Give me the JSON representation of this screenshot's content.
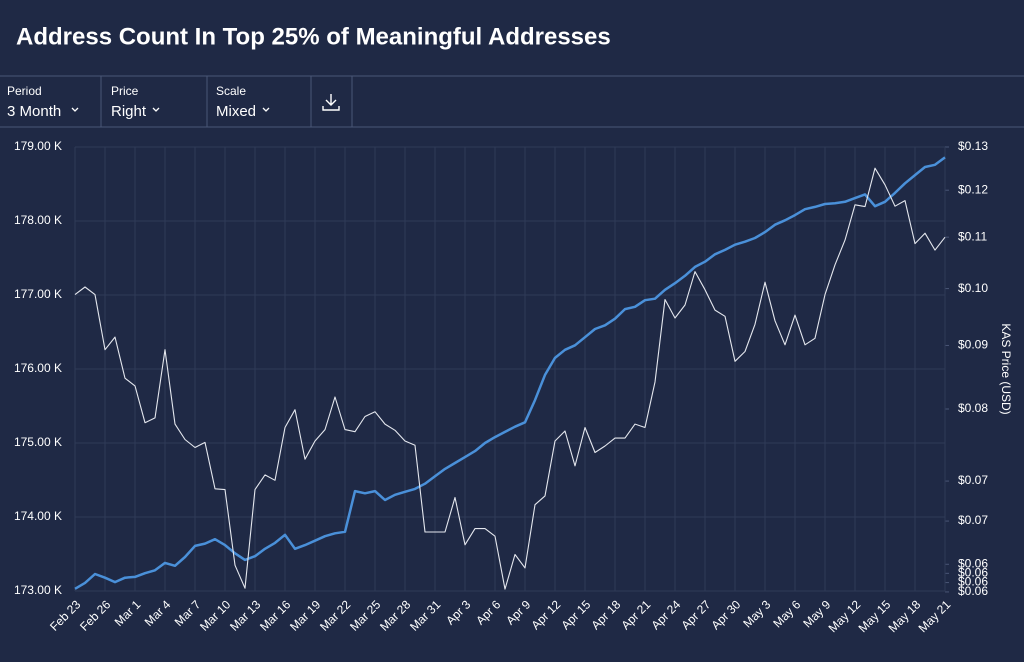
{
  "header": {
    "title": "Address Count In Top 25% of Meaningful Addresses"
  },
  "controls": [
    {
      "label": "Period",
      "value": "3 Month"
    },
    {
      "label": "Price",
      "value": "Right"
    },
    {
      "label": "Scale",
      "value": "Mixed"
    }
  ],
  "chart_data": {
    "type": "line",
    "y2label": "KAS Price (USD)",
    "categories": [
      "Feb 23",
      null,
      null,
      "Feb 26",
      null,
      null,
      "Mar 1",
      null,
      null,
      "Mar 4",
      null,
      null,
      "Mar 7",
      null,
      null,
      "Mar 10",
      null,
      null,
      "Mar 13",
      null,
      null,
      "Mar 16",
      null,
      null,
      "Mar 19",
      null,
      null,
      "Mar 22",
      null,
      null,
      "Mar 25",
      null,
      null,
      "Mar 28",
      null,
      null,
      "Mar 31",
      null,
      null,
      "Apr 3",
      null,
      null,
      "Apr 6",
      null,
      null,
      "Apr 9",
      null,
      null,
      "Apr 12",
      null,
      null,
      "Apr 15",
      null,
      null,
      "Apr 18",
      null,
      null,
      "Apr 21",
      null,
      null,
      "Apr 24",
      null,
      null,
      "Apr 27",
      null,
      null,
      "Apr 30",
      null,
      null,
      "May 3",
      null,
      null,
      "May 6",
      null,
      null,
      "May 9",
      null,
      null,
      "May 12",
      null,
      null,
      "May 15",
      null,
      null,
      "May 18",
      null,
      null,
      "May 21"
    ],
    "series": [
      {
        "color": "#4a90d9",
        "axis": "y",
        "values": [
          173030,
          173110,
          173230,
          173180,
          173120,
          173180,
          173190,
          173240,
          173280,
          173380,
          173340,
          173460,
          173610,
          173640,
          173700,
          173620,
          173510,
          173420,
          173470,
          173570,
          173650,
          173760,
          173570,
          173620,
          173680,
          173740,
          173780,
          173800,
          174350,
          174320,
          174350,
          174230,
          174300,
          174340,
          174380,
          174450,
          174550,
          174650,
          174730,
          174810,
          174890,
          175000,
          175080,
          175150,
          175220,
          175280,
          175580,
          175920,
          176150,
          176260,
          176320,
          176430,
          176540,
          176590,
          176680,
          176810,
          176840,
          176930,
          176950,
          177070,
          177160,
          177260,
          177380,
          177450,
          177550,
          177610,
          177680,
          177720,
          177770,
          177850,
          177950,
          178010,
          178080,
          178160,
          178190,
          178230,
          178240,
          178260,
          178310,
          178360,
          178200,
          178260,
          178380,
          178510,
          178620,
          178730,
          178760,
          178860
        ]
      },
      {
        "color": "#e4e7ee",
        "axis": "y2",
        "values": [
          0.0989,
          0.1003,
          0.0989,
          0.0893,
          0.0914,
          0.0847,
          0.0835,
          0.078,
          0.0787,
          0.0893,
          0.0778,
          0.0756,
          0.0745,
          0.0752,
          0.069,
          0.0689,
          0.0599,
          0.0574,
          0.0689,
          0.0708,
          0.0701,
          0.0773,
          0.0799,
          0.0729,
          0.0754,
          0.077,
          0.0818,
          0.077,
          0.0767,
          0.0789,
          0.0796,
          0.0778,
          0.0769,
          0.0754,
          0.0748,
          0.0637,
          0.0637,
          0.0637,
          0.0679,
          0.0622,
          0.0641,
          0.0641,
          0.0632,
          0.0573,
          0.0611,
          0.0596,
          0.067,
          0.0681,
          0.0754,
          0.0768,
          0.072,
          0.0773,
          0.0738,
          0.0747,
          0.0758,
          0.0758,
          0.0778,
          0.0773,
          0.0841,
          0.098,
          0.0947,
          0.097,
          0.1032,
          0.0998,
          0.0961,
          0.095,
          0.0874,
          0.089,
          0.0936,
          0.1012,
          0.0942,
          0.0901,
          0.0952,
          0.0901,
          0.0912,
          0.0989,
          0.1045,
          0.1094,
          0.1168,
          0.1164,
          0.125,
          0.1212,
          0.1165,
          0.1177,
          0.1087,
          0.1108,
          0.1074,
          0.11
        ]
      }
    ],
    "ylim": [
      173000,
      179000
    ],
    "yticks": [
      {
        "value": 173000,
        "label": "173.00 K"
      },
      {
        "value": 174000,
        "label": "174.00 K"
      },
      {
        "value": 175000,
        "label": "175.00 K"
      },
      {
        "value": 176000,
        "label": "176.00 K"
      },
      {
        "value": 177000,
        "label": "177.00 K"
      },
      {
        "value": 178000,
        "label": "178.00 K"
      },
      {
        "value": 179000,
        "label": "179.00 K"
      }
    ],
    "y2lim": [
      0.0571,
      0.13
    ],
    "y2scale": "log",
    "y2ticks": [
      {
        "value": 0.13,
        "label": "$0.13"
      },
      {
        "value": 0.12,
        "label": "$0.12"
      },
      {
        "value": 0.11,
        "label": "$0.11"
      },
      {
        "value": 0.1,
        "label": "$0.10"
      },
      {
        "value": 0.09,
        "label": "$0.09"
      },
      {
        "value": 0.08,
        "label": "$0.08"
      },
      {
        "value": 0.07,
        "label": "$0.07"
      },
      {
        "value": 0.065,
        "label": "$0.07"
      },
      {
        "value": 0.06,
        "label": "$0.06"
      },
      {
        "value": 0.059,
        "label": "$0.06"
      },
      {
        "value": 0.058,
        "label": "$0.06"
      },
      {
        "value": 0.057,
        "label": "$0.06"
      }
    ],
    "grid": true
  }
}
